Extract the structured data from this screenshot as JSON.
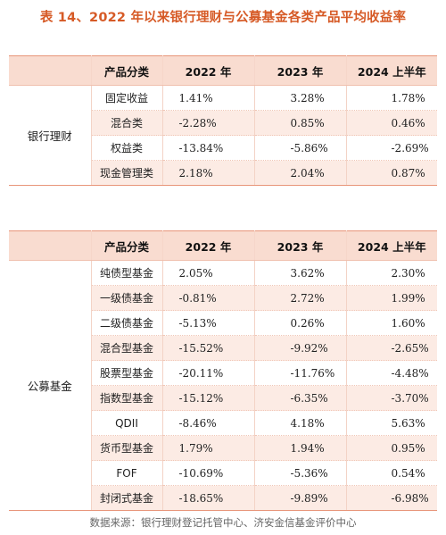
{
  "title": "表 14、2022 年以来银行理财与公募基金各类产品平均收益率",
  "headers": [
    "产品分类",
    "2022 年",
    "2023 年",
    "2024 上半年"
  ],
  "groups": [
    {
      "name": "银行理财",
      "rows": [
        {
          "category": "固定收益",
          "y2022": "1.41%",
          "y2023": "3.28%",
          "y2024h1": "1.78%"
        },
        {
          "category": "混合类",
          "y2022": "-2.28%",
          "y2023": "0.85%",
          "y2024h1": "0.46%"
        },
        {
          "category": "权益类",
          "y2022": "-13.84%",
          "y2023": "-5.86%",
          "y2024h1": "-2.69%"
        },
        {
          "category": "现金管理类",
          "y2022": "2.18%",
          "y2023": "2.04%",
          "y2024h1": "0.87%"
        }
      ]
    },
    {
      "name": "公募基金",
      "rows": [
        {
          "category": "纯债型基金",
          "y2022": "2.05%",
          "y2023": "3.62%",
          "y2024h1": "2.30%"
        },
        {
          "category": "一级债基金",
          "y2022": "-0.81%",
          "y2023": "2.72%",
          "y2024h1": "1.99%"
        },
        {
          "category": "二级债基金",
          "y2022": "-5.13%",
          "y2023": "0.26%",
          "y2024h1": "1.60%"
        },
        {
          "category": "混合型基金",
          "y2022": "-15.52%",
          "y2023": "-9.92%",
          "y2024h1": "-2.65%"
        },
        {
          "category": "股票型基金",
          "y2022": "-20.11%",
          "y2023": "-11.76%",
          "y2024h1": "-4.48%"
        },
        {
          "category": "指数型基金",
          "y2022": "-15.12%",
          "y2023": "-6.35%",
          "y2024h1": "-3.70%"
        },
        {
          "category": "QDII",
          "y2022": "-8.46%",
          "y2023": "4.18%",
          "y2024h1": "5.63%"
        },
        {
          "category": "货币型基金",
          "y2022": "1.79%",
          "y2023": "1.94%",
          "y2024h1": "0.95%"
        },
        {
          "category": "FOF",
          "y2022": "-10.69%",
          "y2023": "-5.36%",
          "y2024h1": "0.54%"
        },
        {
          "category": "封闭式基金",
          "y2022": "-18.65%",
          "y2023": "-9.89%",
          "y2024h1": "-6.98%"
        }
      ]
    }
  ],
  "source": "数据来源：银行理财登记托管中心、济安金信基金评价中心",
  "colors": {
    "title": "#d65a26",
    "header_bg": "#f9dcd0",
    "alt_row_bg": "#fcebe4",
    "rule": "#e8957a"
  }
}
